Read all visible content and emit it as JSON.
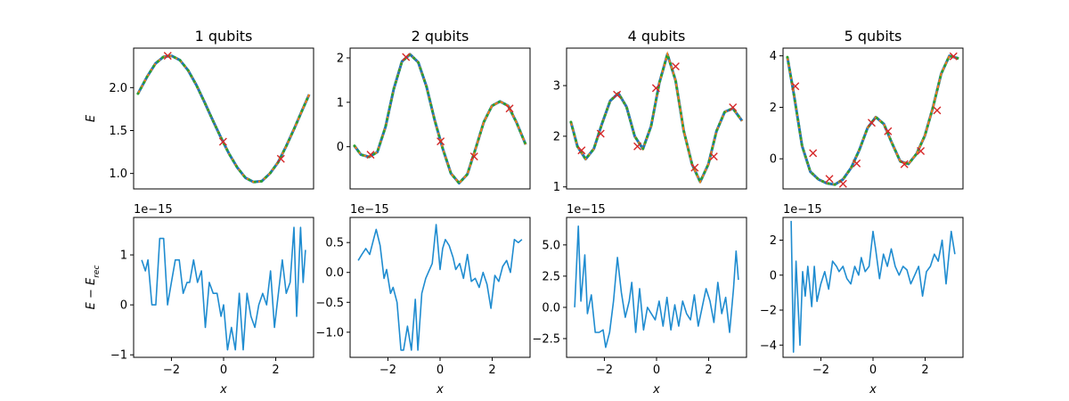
{
  "figure": {
    "colors": {
      "exact": "#1f77b4",
      "reconstructed": "#ff7f0e",
      "dots": "#2ca02c",
      "markers": "#d62728",
      "residual": "#1f8cd0"
    }
  },
  "chart_data": [
    {
      "type": "line",
      "title": "1 qubits",
      "xlabel": "",
      "ylabel": "E",
      "xlim": [
        -3.3,
        3.3
      ],
      "ylim": [
        0.82,
        2.46
      ],
      "xticks": [],
      "yticks": [
        {
          "value": 1.0,
          "label": "1.0"
        },
        {
          "value": 1.5,
          "label": "1.5"
        },
        {
          "value": 2.0,
          "label": "2.0"
        }
      ],
      "series": [
        {
          "style": "curve",
          "x": [
            -3.14,
            -2.8,
            -2.5,
            -2.2,
            -1.9,
            -1.6,
            -1.3,
            -1.0,
            -0.7,
            -0.4,
            -0.1,
            0.2,
            0.5,
            0.8,
            1.1,
            1.4,
            1.7,
            2.0,
            2.3,
            2.6,
            2.9,
            3.14
          ],
          "y": [
            1.93,
            2.13,
            2.28,
            2.36,
            2.37,
            2.32,
            2.2,
            2.03,
            1.83,
            1.62,
            1.42,
            1.23,
            1.07,
            0.95,
            0.9,
            0.91,
            1.0,
            1.13,
            1.32,
            1.53,
            1.75,
            1.92
          ]
        },
        {
          "style": "markers",
          "x": [
            -2.05,
            -0.02,
            2.1
          ],
          "y": [
            2.37,
            1.37,
            1.17
          ]
        }
      ]
    },
    {
      "type": "line",
      "title": "2 qubits",
      "xlabel": "",
      "ylabel": "",
      "xlim": [
        -3.3,
        3.3
      ],
      "ylim": [
        -0.95,
        2.22
      ],
      "xticks": [],
      "yticks": [
        {
          "value": 0,
          "label": "0"
        },
        {
          "value": 1,
          "label": "1"
        },
        {
          "value": 2,
          "label": "2"
        }
      ],
      "series": [
        {
          "style": "curve",
          "x": [
            -3.14,
            -2.9,
            -2.6,
            -2.3,
            -2.0,
            -1.7,
            -1.4,
            -1.1,
            -0.8,
            -0.5,
            -0.2,
            0.1,
            0.4,
            0.7,
            1.0,
            1.3,
            1.6,
            1.9,
            2.2,
            2.5,
            2.8,
            3.14
          ],
          "y": [
            0.02,
            -0.18,
            -0.23,
            -0.12,
            0.45,
            1.3,
            1.92,
            2.08,
            1.9,
            1.36,
            0.6,
            -0.05,
            -0.6,
            -0.82,
            -0.62,
            -0.05,
            0.55,
            0.92,
            1.02,
            0.92,
            0.55,
            0.05
          ]
        },
        {
          "style": "markers",
          "x": [
            -2.55,
            -1.25,
            0.02,
            1.25,
            2.55
          ],
          "y": [
            -0.18,
            2.02,
            0.12,
            -0.22,
            0.86
          ]
        }
      ]
    },
    {
      "type": "line",
      "title": "4 qubits",
      "xlabel": "",
      "ylabel": "",
      "xlim": [
        -3.3,
        3.3
      ],
      "ylim": [
        0.96,
        3.74
      ],
      "xticks": [],
      "yticks": [
        {
          "value": 1,
          "label": "1"
        },
        {
          "value": 2,
          "label": "2"
        },
        {
          "value": 3,
          "label": "3"
        }
      ],
      "series": [
        {
          "style": "curve",
          "x": [
            -3.14,
            -2.9,
            -2.6,
            -2.3,
            -2.0,
            -1.7,
            -1.4,
            -1.1,
            -0.8,
            -0.5,
            -0.2,
            0.1,
            0.4,
            0.7,
            1.0,
            1.3,
            1.6,
            1.9,
            2.2,
            2.5,
            2.8,
            3.14
          ],
          "y": [
            2.28,
            1.8,
            1.55,
            1.75,
            2.25,
            2.7,
            2.85,
            2.58,
            2.0,
            1.75,
            2.2,
            3.05,
            3.62,
            3.1,
            2.1,
            1.45,
            1.1,
            1.45,
            2.1,
            2.48,
            2.55,
            2.3
          ]
        },
        {
          "style": "markers",
          "x": [
            -2.75,
            -2.05,
            -1.45,
            -0.7,
            -0.02,
            0.7,
            1.4,
            2.1,
            2.8
          ],
          "y": [
            1.72,
            2.05,
            2.82,
            1.8,
            2.95,
            3.38,
            1.38,
            1.6,
            2.57
          ]
        }
      ]
    },
    {
      "type": "line",
      "title": "5 qubits",
      "xlabel": "",
      "ylabel": "",
      "xlim": [
        -3.3,
        3.3
      ],
      "ylim": [
        -1.17,
        4.3
      ],
      "xticks": [],
      "yticks": [
        {
          "value": 0,
          "label": "0"
        },
        {
          "value": 2,
          "label": "2"
        },
        {
          "value": 4,
          "label": "4"
        }
      ],
      "series": [
        {
          "style": "curve",
          "x": [
            -3.14,
            -2.9,
            -2.6,
            -2.3,
            -2.0,
            -1.7,
            -1.4,
            -1.1,
            -0.8,
            -0.5,
            -0.2,
            0.1,
            0.4,
            0.7,
            1.0,
            1.3,
            1.6,
            1.9,
            2.2,
            2.5,
            2.8,
            3.14
          ],
          "y": [
            3.95,
            2.5,
            0.5,
            -0.5,
            -0.8,
            -0.95,
            -1.0,
            -0.8,
            -0.35,
            0.35,
            1.2,
            1.62,
            1.35,
            0.6,
            -0.1,
            -0.2,
            0.2,
            0.9,
            2.0,
            3.3,
            4.0,
            3.9
          ]
        },
        {
          "style": "markers",
          "x": [
            -2.85,
            -2.2,
            -1.6,
            -1.1,
            -0.6,
            -0.05,
            0.55,
            1.15,
            1.75,
            2.35,
            2.95
          ],
          "y": [
            2.82,
            0.22,
            -0.78,
            -0.97,
            -0.18,
            1.4,
            1.07,
            -0.21,
            0.3,
            1.88,
            3.98
          ]
        }
      ]
    },
    {
      "type": "line",
      "title": "",
      "xlabel": "x",
      "ylabel": "E − E_rec",
      "offset_text": "1e−15",
      "xlim": [
        -3.45,
        3.45
      ],
      "ylim": [
        -1.05,
        1.75
      ],
      "xticks": [
        {
          "value": -2,
          "label": "−2"
        },
        {
          "value": 0,
          "label": "0"
        },
        {
          "value": 2,
          "label": "2"
        }
      ],
      "yticks": [
        {
          "value": -1,
          "label": "−1"
        },
        {
          "value": 0,
          "label": "0"
        },
        {
          "value": 1,
          "label": "1"
        }
      ],
      "series": [
        {
          "style": "residual",
          "x": [
            -3.14,
            -3.0,
            -2.9,
            -2.75,
            -2.6,
            -2.45,
            -2.3,
            -2.15,
            -2.0,
            -1.85,
            -1.7,
            -1.55,
            -1.4,
            -1.3,
            -1.15,
            -1.0,
            -0.85,
            -0.7,
            -0.55,
            -0.4,
            -0.25,
            -0.1,
            0.0,
            0.15,
            0.3,
            0.45,
            0.6,
            0.75,
            0.9,
            1.05,
            1.2,
            1.35,
            1.5,
            1.65,
            1.8,
            1.95,
            2.1,
            2.25,
            2.4,
            2.55,
            2.7,
            2.8,
            2.95,
            3.05,
            3.14
          ],
          "y": [
            0.9,
            0.68,
            0.9,
            0.0,
            0.0,
            1.33,
            1.33,
            0.0,
            0.45,
            0.9,
            0.9,
            0.23,
            0.45,
            0.45,
            0.9,
            0.45,
            0.68,
            -0.45,
            0.45,
            0.23,
            0.23,
            -0.23,
            0.0,
            -0.9,
            -0.45,
            -0.9,
            0.23,
            -0.9,
            0.23,
            -0.23,
            -0.45,
            0.0,
            0.23,
            0.0,
            0.68,
            -0.45,
            0.23,
            0.9,
            0.23,
            0.45,
            1.55,
            -0.23,
            1.55,
            0.45,
            1.1
          ]
        }
      ]
    },
    {
      "type": "line",
      "title": "",
      "xlabel": "x",
      "ylabel": "",
      "offset_text": "1e−15",
      "xlim": [
        -3.45,
        3.45
      ],
      "ylim": [
        -1.42,
        0.92
      ],
      "xticks": [
        {
          "value": -2,
          "label": "−2"
        },
        {
          "value": 0,
          "label": "0"
        },
        {
          "value": 2,
          "label": "2"
        }
      ],
      "yticks": [
        {
          "value": -1.0,
          "label": "−1.0"
        },
        {
          "value": -0.5,
          "label": "−0.5"
        },
        {
          "value": 0.0,
          "label": "0.0"
        },
        {
          "value": 0.5,
          "label": "0.5"
        }
      ],
      "series": [
        {
          "style": "residual",
          "x": [
            -3.14,
            -3.0,
            -2.85,
            -2.7,
            -2.55,
            -2.45,
            -2.3,
            -2.15,
            -2.05,
            -1.9,
            -1.8,
            -1.65,
            -1.5,
            -1.4,
            -1.25,
            -1.1,
            -0.95,
            -0.85,
            -0.7,
            -0.55,
            -0.45,
            -0.3,
            -0.15,
            0.0,
            0.1,
            0.2,
            0.35,
            0.5,
            0.6,
            0.75,
            0.9,
            1.05,
            1.2,
            1.35,
            1.5,
            1.65,
            1.8,
            1.95,
            2.1,
            2.25,
            2.4,
            2.55,
            2.7,
            2.85,
            3.0,
            3.14
          ],
          "y": [
            0.2,
            0.3,
            0.4,
            0.3,
            0.55,
            0.72,
            0.45,
            -0.1,
            0.05,
            -0.35,
            -0.25,
            -0.5,
            -1.3,
            -1.3,
            -0.9,
            -1.3,
            -0.45,
            -1.3,
            -0.35,
            -0.1,
            0.0,
            0.15,
            0.8,
            0.05,
            0.4,
            0.55,
            0.45,
            0.25,
            0.05,
            0.15,
            -0.1,
            0.3,
            -0.15,
            -0.1,
            -0.25,
            0.0,
            -0.2,
            -0.6,
            -0.05,
            -0.15,
            0.1,
            0.2,
            0.0,
            0.55,
            0.5,
            0.55
          ]
        }
      ]
    },
    {
      "type": "line",
      "title": "",
      "xlabel": "x",
      "ylabel": "",
      "offset_text": "1e−15",
      "xlim": [
        -3.45,
        3.45
      ],
      "ylim": [
        -4.0,
        7.2
      ],
      "xticks": [
        {
          "value": -2,
          "label": "−2"
        },
        {
          "value": 0,
          "label": "0"
        },
        {
          "value": 2,
          "label": "2"
        }
      ],
      "yticks": [
        {
          "value": -2.5,
          "label": "−2.5"
        },
        {
          "value": 0.0,
          "label": "0.0"
        },
        {
          "value": 2.5,
          "label": "2.5"
        },
        {
          "value": 5.0,
          "label": "5.0"
        }
      ],
      "series": [
        {
          "style": "residual",
          "x": [
            -3.14,
            -3.0,
            -2.9,
            -2.75,
            -2.65,
            -2.5,
            -2.35,
            -2.2,
            -2.05,
            -1.95,
            -1.8,
            -1.65,
            -1.5,
            -1.35,
            -1.2,
            -1.05,
            -0.95,
            -0.8,
            -0.65,
            -0.5,
            -0.35,
            -0.2,
            -0.05,
            0.1,
            0.25,
            0.4,
            0.55,
            0.7,
            0.85,
            1.0,
            1.15,
            1.3,
            1.45,
            1.6,
            1.75,
            1.9,
            2.05,
            2.2,
            2.35,
            2.5,
            2.65,
            2.8,
            2.95,
            3.05,
            3.14
          ],
          "y": [
            0.0,
            6.5,
            0.5,
            4.2,
            -0.5,
            1.0,
            -2.0,
            -2.0,
            -1.8,
            -3.2,
            -2.0,
            0.5,
            4.0,
            1.2,
            -0.8,
            0.5,
            2.0,
            -2.0,
            1.5,
            -1.8,
            0.0,
            -0.5,
            -1.0,
            0.5,
            -1.5,
            0.8,
            -1.8,
            0.2,
            -1.5,
            0.5,
            -0.5,
            -1.0,
            1.0,
            -1.5,
            0.0,
            1.5,
            0.5,
            -1.2,
            2.0,
            -0.5,
            0.8,
            -2.0,
            1.5,
            4.5,
            2.2
          ]
        }
      ]
    },
    {
      "type": "line",
      "title": "",
      "xlabel": "x",
      "ylabel": "",
      "offset_text": "1e−15",
      "xlim": [
        -3.45,
        3.45
      ],
      "ylim": [
        -4.7,
        3.3
      ],
      "xticks": [
        {
          "value": -2,
          "label": "−2"
        },
        {
          "value": 0,
          "label": "0"
        },
        {
          "value": 2,
          "label": "2"
        }
      ],
      "yticks": [
        {
          "value": -4,
          "label": "−4"
        },
        {
          "value": -2,
          "label": "−2"
        },
        {
          "value": 0,
          "label": "0"
        },
        {
          "value": 2,
          "label": "2"
        }
      ],
      "series": [
        {
          "style": "residual",
          "x": [
            -3.14,
            -3.05,
            -2.95,
            -2.8,
            -2.7,
            -2.6,
            -2.5,
            -2.35,
            -2.25,
            -2.15,
            -2.0,
            -1.85,
            -1.7,
            -1.55,
            -1.4,
            -1.3,
            -1.15,
            -1.0,
            -0.85,
            -0.7,
            -0.55,
            -0.45,
            -0.3,
            -0.15,
            0.0,
            0.1,
            0.25,
            0.4,
            0.55,
            0.7,
            0.85,
            1.0,
            1.15,
            1.3,
            1.45,
            1.6,
            1.75,
            1.9,
            2.05,
            2.2,
            2.35,
            2.5,
            2.65,
            2.8,
            3.0,
            3.14
          ],
          "y": [
            3.1,
            -4.4,
            0.8,
            -4.0,
            0.2,
            -1.2,
            0.5,
            -1.8,
            0.5,
            -1.5,
            -0.5,
            0.2,
            -0.8,
            0.8,
            0.5,
            0.2,
            0.5,
            -0.2,
            -0.5,
            0.5,
            0.0,
            1.0,
            0.2,
            0.5,
            2.5,
            1.5,
            -0.2,
            1.2,
            0.5,
            1.5,
            0.5,
            0.0,
            0.5,
            0.3,
            -0.5,
            0.0,
            0.5,
            -1.2,
            0.2,
            0.5,
            1.2,
            0.8,
            2.0,
            -0.5,
            2.5,
            1.2
          ]
        }
      ]
    }
  ]
}
